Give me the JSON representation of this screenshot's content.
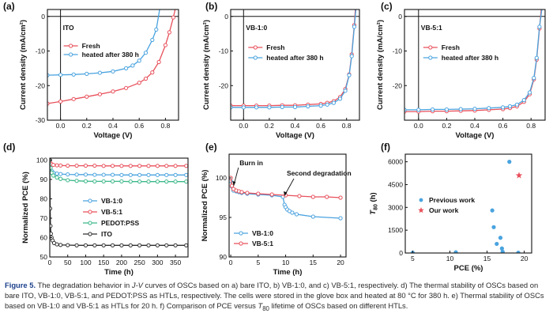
{
  "colors": {
    "red": "#e8505b",
    "blue": "#4aa3df",
    "green": "#3cb88a",
    "black": "#303030",
    "axis": "#1a1a1a"
  },
  "caption": {
    "label": "Figure 5.",
    "p1": "The degradation behavior in ",
    "jv": "J-V",
    "p2": " curves of OSCs based on a) bare ITO, b) VB-1:0, and c) VB-5:1, respectively. d) The thermal stability of OSCs based on bare ITO, VB-1:0, VB-5:1, and PEDOT:PSS as HTLs, respectively. The cells were stored in the glove box and heated at 80 °C for 380 h. e) Thermal stability of OSCs based on VB-1:0 and VB-5:1 as HTLs for 20 h. f) Comparison of PCE versus ",
    "t80": "T",
    "t80sub": "80",
    "p3": " lifetime of OSCs based on different HTLs."
  },
  "chart_data": [
    {
      "id": "a",
      "type": "line",
      "panel_label": "(a)",
      "tag": "ITO",
      "xlabel": "Voltage (V)",
      "ylabel": "Current density (mA/cm²)",
      "xlim": [
        -0.1,
        0.9
      ],
      "ylim": [
        -30,
        2
      ],
      "xticks": [
        0.0,
        0.2,
        0.4,
        0.6,
        0.8
      ],
      "xtick_labels": [
        "0.0",
        "0.2",
        "0.4",
        "0.6",
        "0.8"
      ],
      "yticks": [
        -30,
        -20,
        -10,
        0
      ],
      "ytick_labels": [
        "-30",
        "-20",
        "-10",
        "0"
      ],
      "legend": [
        "Fresh",
        "heated after 380 h"
      ],
      "series": [
        {
          "name": "Fresh",
          "color": "red",
          "marker": "circle",
          "x": [
            -0.1,
            0.0,
            0.1,
            0.2,
            0.3,
            0.4,
            0.5,
            0.6,
            0.65,
            0.7,
            0.75,
            0.8,
            0.83,
            0.86,
            0.88
          ],
          "y": [
            -25.2,
            -24.6,
            -23.9,
            -23.2,
            -22.5,
            -21.7,
            -20.7,
            -19.2,
            -18.0,
            -16.2,
            -13.2,
            -8.3,
            -4.6,
            -0.3,
            3.0
          ]
        },
        {
          "name": "heated after 380 h",
          "color": "blue",
          "marker": "circle",
          "x": [
            -0.1,
            0.0,
            0.1,
            0.2,
            0.3,
            0.4,
            0.5,
            0.55,
            0.6,
            0.65,
            0.7,
            0.73,
            0.76
          ],
          "y": [
            -17.0,
            -16.9,
            -16.8,
            -16.6,
            -16.3,
            -15.9,
            -15.0,
            -14.2,
            -12.8,
            -10.5,
            -6.8,
            -3.8,
            3.0
          ]
        }
      ]
    },
    {
      "id": "b",
      "type": "line",
      "panel_label": "(b)",
      "tag": "VB-1:0",
      "xlabel": "Voltage (V)",
      "ylabel": "Current density (mA/cm²)",
      "xlim": [
        -0.1,
        0.9
      ],
      "ylim": [
        -30,
        2
      ],
      "xticks": [
        0.0,
        0.2,
        0.4,
        0.6,
        0.8
      ],
      "xtick_labels": [
        "0.0",
        "0.2",
        "0.4",
        "0.6",
        "0.8"
      ],
      "yticks": [
        -20,
        -10,
        0
      ],
      "ytick_labels": [
        "-20",
        "-10",
        "0"
      ],
      "legend": [
        "Fresh",
        "heated after 380 h"
      ],
      "series": [
        {
          "name": "Fresh",
          "color": "red",
          "marker": "circle",
          "x": [
            -0.1,
            0.0,
            0.1,
            0.2,
            0.3,
            0.4,
            0.5,
            0.6,
            0.65,
            0.7,
            0.75,
            0.79,
            0.82,
            0.84,
            0.86,
            0.87
          ],
          "y": [
            -25.8,
            -25.8,
            -25.8,
            -25.8,
            -25.7,
            -25.7,
            -25.5,
            -25.3,
            -25.0,
            -24.5,
            -23.3,
            -21.0,
            -16.8,
            -11.0,
            -2.5,
            3.0
          ]
        },
        {
          "name": "heated after 380 h",
          "color": "blue",
          "marker": "circle",
          "x": [
            -0.1,
            0.0,
            0.1,
            0.2,
            0.3,
            0.4,
            0.5,
            0.6,
            0.65,
            0.7,
            0.75,
            0.79,
            0.82,
            0.84,
            0.86,
            0.875
          ],
          "y": [
            -26.3,
            -26.3,
            -26.3,
            -26.3,
            -26.2,
            -26.2,
            -26.0,
            -25.8,
            -25.5,
            -25.0,
            -23.8,
            -21.5,
            -17.0,
            -11.5,
            -3.0,
            3.0
          ]
        }
      ]
    },
    {
      "id": "c",
      "type": "line",
      "panel_label": "(c)",
      "tag": "VB-5:1",
      "xlabel": "Voltage (V)",
      "ylabel": "Current density (mA/cm²)",
      "xlim": [
        -0.1,
        0.9
      ],
      "ylim": [
        -30,
        2
      ],
      "xticks": [
        0.0,
        0.2,
        0.4,
        0.6,
        0.8
      ],
      "xtick_labels": [
        "0.0",
        "0.2",
        "0.4",
        "0.6",
        "0.8"
      ],
      "yticks": [
        -20,
        -10,
        0
      ],
      "ytick_labels": [
        "-20",
        "-10",
        "0"
      ],
      "legend": [
        "Fresh",
        "heated after 380 h"
      ],
      "series": [
        {
          "name": "Fresh",
          "color": "red",
          "marker": "circle",
          "x": [
            -0.1,
            0.0,
            0.1,
            0.2,
            0.3,
            0.4,
            0.5,
            0.6,
            0.65,
            0.7,
            0.75,
            0.79,
            0.82,
            0.84,
            0.86,
            0.875
          ],
          "y": [
            -27.5,
            -27.5,
            -27.4,
            -27.4,
            -27.3,
            -27.2,
            -27.0,
            -26.8,
            -26.5,
            -26.0,
            -24.7,
            -22.5,
            -18.2,
            -12.5,
            -3.5,
            3.0
          ]
        },
        {
          "name": "heated after 380 h",
          "color": "blue",
          "marker": "circle",
          "x": [
            -0.1,
            0.0,
            0.1,
            0.2,
            0.3,
            0.4,
            0.5,
            0.6,
            0.65,
            0.7,
            0.75,
            0.79,
            0.82,
            0.84,
            0.86,
            0.88
          ],
          "y": [
            -27.0,
            -27.0,
            -26.9,
            -26.9,
            -26.8,
            -26.7,
            -26.5,
            -26.3,
            -26.0,
            -25.5,
            -24.2,
            -22.0,
            -17.8,
            -12.0,
            -3.0,
            3.0
          ]
        }
      ]
    },
    {
      "id": "d",
      "type": "line",
      "panel_label": "(d)",
      "xlabel": "Time (h)",
      "ylabel": "Normalized PCE (%)",
      "xlim": [
        0,
        385
      ],
      "ylim": [
        50,
        101
      ],
      "xticks": [
        0,
        50,
        100,
        150,
        200,
        250,
        300,
        350
      ],
      "xtick_labels": [
        "0",
        "50",
        "100",
        "150",
        "200",
        "250",
        "300",
        "350"
      ],
      "yticks": [
        50,
        60,
        70,
        80,
        90,
        100
      ],
      "ytick_labels": [
        "50",
        "60",
        "70",
        "80",
        "90",
        "100"
      ],
      "legend": [
        "VB-1:0",
        "VB-5:1",
        "PEDOT:PSS",
        "ITO"
      ],
      "series": [
        {
          "name": "VB-1:0",
          "color": "blue",
          "marker": "circle",
          "x": [
            0,
            2,
            5,
            10,
            20,
            30,
            50,
            75,
            100,
            125,
            150,
            175,
            200,
            225,
            250,
            275,
            300,
            325,
            350,
            380
          ],
          "y": [
            100,
            96.5,
            94.5,
            93.5,
            93,
            92.8,
            92.6,
            92.5,
            92.5,
            92.4,
            92.4,
            92.4,
            92.3,
            92.3,
            92.3,
            92.3,
            92.3,
            92.3,
            92.3,
            92.3
          ]
        },
        {
          "name": "VB-5:1",
          "color": "red",
          "marker": "circle",
          "x": [
            0,
            2,
            5,
            10,
            20,
            30,
            50,
            75,
            100,
            125,
            150,
            175,
            200,
            225,
            250,
            275,
            300,
            325,
            350,
            380
          ],
          "y": [
            100,
            98.5,
            97.8,
            97.5,
            97.3,
            97.2,
            97.1,
            97.1,
            97.1,
            97.1,
            97.0,
            97.0,
            97.0,
            97.0,
            97.0,
            97.0,
            97.0,
            97.0,
            97.0,
            97.0
          ]
        },
        {
          "name": "PEDOT:PSS",
          "color": "green",
          "marker": "circle",
          "x": [
            0,
            2,
            5,
            10,
            20,
            30,
            50,
            75,
            100,
            125,
            150,
            175,
            200,
            225,
            250,
            275,
            300,
            325,
            350,
            380
          ],
          "y": [
            100,
            96,
            93.5,
            92,
            91,
            90.3,
            89.6,
            89.3,
            89.1,
            89.0,
            89.0,
            89.0,
            89.0,
            88.9,
            88.9,
            88.9,
            88.9,
            88.9,
            88.9,
            88.9
          ]
        },
        {
          "name": "ITO",
          "color": "black",
          "marker": "circle",
          "x": [
            0,
            1,
            2,
            3,
            5,
            8,
            12,
            20,
            30,
            50,
            75,
            100,
            125,
            150,
            175,
            200,
            225,
            250,
            275,
            300,
            325,
            350,
            380
          ],
          "y": [
            100,
            75,
            66,
            62,
            60,
            58.5,
            57.2,
            56.5,
            56.2,
            56.1,
            56.0,
            56.0,
            56.0,
            56.0,
            56.0,
            56.0,
            56.0,
            56.0,
            56.0,
            56.0,
            56.0,
            56.0,
            56.0
          ]
        }
      ]
    },
    {
      "id": "e",
      "type": "line",
      "panel_label": "(e)",
      "xlabel": "Time (h)",
      "ylabel": "Normalized PCE (%)",
      "xlim": [
        -0.3,
        21
      ],
      "ylim": [
        90,
        103
      ],
      "xticks": [
        0,
        5,
        10,
        15,
        20
      ],
      "xtick_labels": [
        "0",
        "5",
        "10",
        "15",
        "20"
      ],
      "yticks": [
        90,
        95,
        100
      ],
      "ytick_labels": [
        "90",
        "95",
        "100"
      ],
      "legend": [
        "VB-1:0",
        "VB-5:1"
      ],
      "annotations": [
        "Burn in",
        "Second degradation"
      ],
      "series": [
        {
          "name": "VB-1:0",
          "color": "blue",
          "marker": "circle",
          "x": [
            0,
            0.2,
            0.5,
            1,
            1.5,
            2,
            3,
            5,
            7.5,
            9.5,
            9.8,
            10,
            10.3,
            10.7,
            11.2,
            12,
            15,
            20
          ],
          "y": [
            99.6,
            98.9,
            98.4,
            98.3,
            98.2,
            98.1,
            98.0,
            97.9,
            97.8,
            97.6,
            96.6,
            96.3,
            96.0,
            95.8,
            95.6,
            95.4,
            95.1,
            94.9
          ]
        },
        {
          "name": "VB-5:1",
          "color": "red",
          "marker": "circle",
          "x": [
            0,
            0.2,
            0.5,
            1,
            1.5,
            2,
            3,
            5,
            7.5,
            10,
            12.5,
            15,
            17.5,
            20
          ],
          "y": [
            100,
            99.0,
            98.6,
            98.4,
            98.3,
            98.2,
            98.1,
            98.0,
            97.9,
            97.8,
            97.7,
            97.6,
            97.6,
            97.5
          ]
        }
      ]
    },
    {
      "id": "f",
      "type": "scatter",
      "panel_label": "(f)",
      "xlabel": "PCE (%)",
      "ylabel": "T80 (h)",
      "xlim": [
        4,
        21
      ],
      "ylim": [
        0,
        6500
      ],
      "xticks": [
        5,
        10,
        15,
        20
      ],
      "xtick_labels": [
        "5",
        "10",
        "15",
        "20"
      ],
      "yticks": [
        0,
        1500,
        3000,
        4500,
        6000
      ],
      "ytick_labels": [
        "0",
        "1500",
        "3000",
        "4500",
        "6000"
      ],
      "legend": [
        "Previous work",
        "Our work"
      ],
      "series": [
        {
          "name": "Previous work",
          "color": "blue",
          "marker": "dot",
          "x": [
            5.0,
            10.8,
            15.7,
            15.9,
            16.3,
            16.8,
            17.0,
            17.1,
            18.0,
            19.2
          ],
          "y": [
            20,
            50,
            2800,
            1700,
            600,
            1000,
            300,
            80,
            6000,
            20
          ]
        },
        {
          "name": "Our work",
          "color": "red",
          "marker": "star",
          "x": [
            19.3
          ],
          "y": [
            5100
          ]
        }
      ]
    }
  ]
}
